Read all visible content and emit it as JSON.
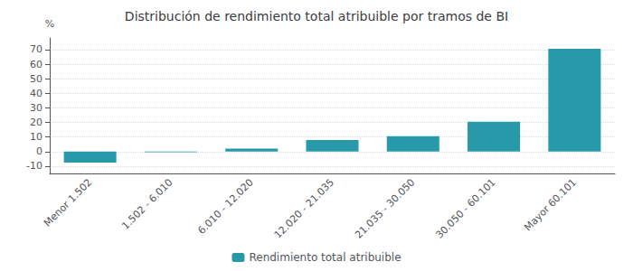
{
  "chart_data": {
    "type": "bar",
    "title": "Distribución de rendimiento total atribuible por tramos de BI",
    "categories": [
      "Menor 1.502",
      "1.502 - 6.010",
      "6.010 - 12.020",
      "12.020 - 21.035",
      "21.035 - 30.050",
      "30.050 - 60.101",
      "Mayor 60.101"
    ],
    "series": [
      {
        "name": "Rendimiento total atribuible",
        "color": "#2899a8",
        "values": [
          -7.5,
          -0.5,
          2.0,
          8.0,
          10.5,
          20.5,
          70.5
        ]
      }
    ],
    "ylabel": "%",
    "ylim": [
      -15,
      78
    ],
    "yticks": [
      -10,
      0,
      10,
      20,
      30,
      40,
      50,
      60,
      70
    ],
    "grid": true,
    "legend": "bottom"
  }
}
